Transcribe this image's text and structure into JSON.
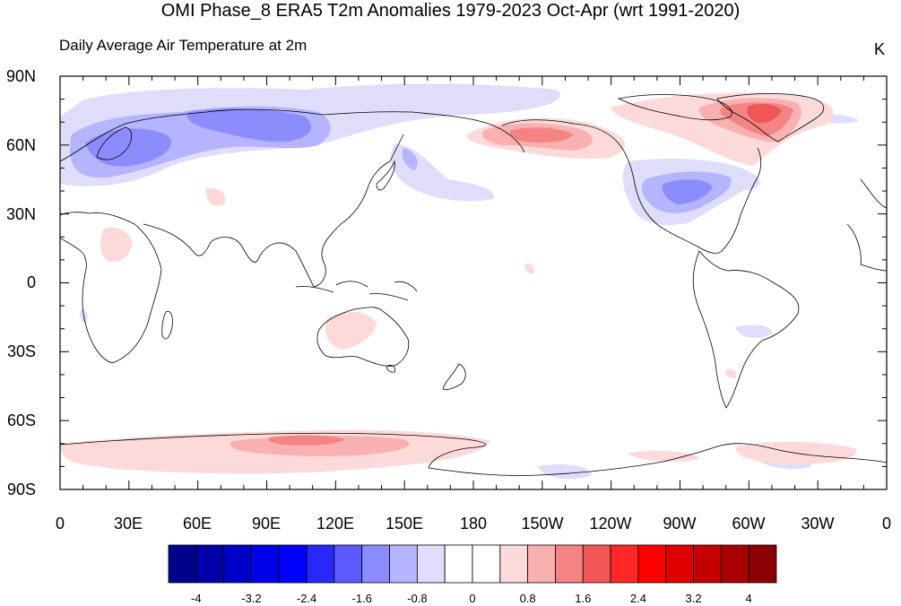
{
  "title": "OMI Phase_8 ERA5 T2m Anomalies 1979-2023 Oct-Apr (wrt 1991-2020)",
  "subtitle": "Daily Average Air Temperature at 2m",
  "units": "K",
  "lat_labels": [
    "90N",
    "60N",
    "30N",
    "0",
    "30S",
    "60S",
    "90S"
  ],
  "lon_labels": [
    "0",
    "30E",
    "60E",
    "90E",
    "120E",
    "150E",
    "180",
    "150W",
    "120W",
    "90W",
    "60W",
    "30W",
    "0"
  ],
  "colorbar": {
    "colors": [
      "#00008b",
      "#0000a8",
      "#0000c8",
      "#0000e6",
      "#0000ff",
      "#2828ff",
      "#5a5aff",
      "#8c8cff",
      "#b4b4ff",
      "#dedefa",
      "#ffffff",
      "#ffffff",
      "#fcdada",
      "#f8b0b0",
      "#f48484",
      "#f05656",
      "#ff2828",
      "#ff0000",
      "#e00000",
      "#c40000",
      "#a80000",
      "#8b0000"
    ],
    "tick_labels": [
      "-4",
      "-3.2",
      "-2.4",
      "-1.6",
      "-0.8",
      "0",
      "0.8",
      "1.6",
      "2.4",
      "3.2",
      "4"
    ]
  }
}
